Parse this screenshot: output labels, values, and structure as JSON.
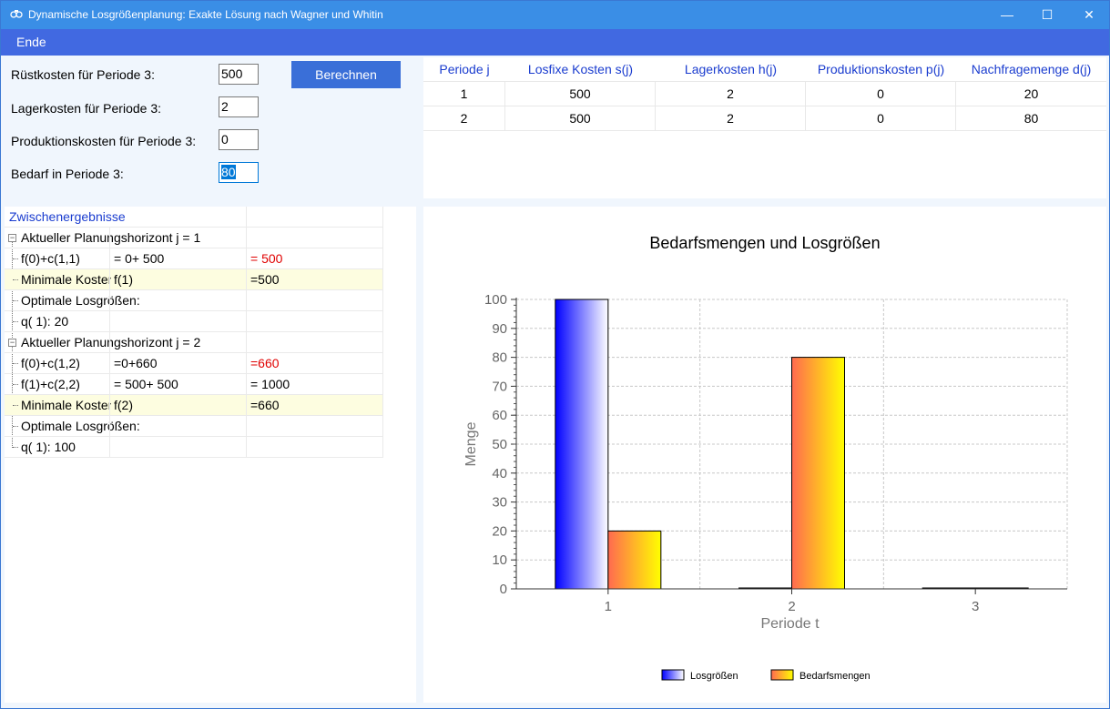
{
  "window": {
    "title": "Dynamische Losgrößenplanung: Exakte Lösung nach Wagner und Whitin",
    "minimize": "—",
    "maximize": "☐",
    "close": "✕"
  },
  "menu": {
    "ende": "Ende"
  },
  "form": {
    "ruestkosten_label": "Rüstkosten für Periode 3:",
    "ruestkosten_value": "500",
    "lagerkosten_label": "Lagerkosten für Periode 3:",
    "lagerkosten_value": "2",
    "produktionskosten_label": "Produktionskosten für Periode 3:",
    "produktionskosten_value": "0",
    "bedarf_label": "Bedarf in Periode 3:",
    "bedarf_value": "80",
    "berechnen_label": "Berechnen"
  },
  "grid": {
    "headers": [
      "Periode j",
      "Losfixe Kosten s(j)",
      "Lagerkosten h(j)",
      "Produktionskosten p(j)",
      "Nachfragemenge d(j)"
    ],
    "rows": [
      [
        "1",
        "500",
        "2",
        "0",
        "20"
      ],
      [
        "2",
        "500",
        "2",
        "0",
        "80"
      ]
    ]
  },
  "tree": {
    "header": "Zwischenergebnisse",
    "rows": [
      {
        "c1": "Aktueller Planungshorizont j =  1",
        "c2": "",
        "c3": ""
      },
      {
        "c1": "f(0)+c(1,1)",
        "c2": "= 0+ 500",
        "c3": "= 500"
      },
      {
        "c1": "Minimale Kosten",
        "c2": "f(1)",
        "c3": "=500"
      },
      {
        "c1": "Optimale Losgrößen:",
        "c2": "",
        "c3": ""
      },
      {
        "c1": "q( 1):  20",
        "c2": "",
        "c3": ""
      },
      {
        "c1": "Aktueller Planungshorizont j =  2",
        "c2": "",
        "c3": ""
      },
      {
        "c1": "f(0)+c(1,2)",
        "c2": "=0+660",
        "c3": "=660"
      },
      {
        "c1": "f(1)+c(2,2)",
        "c2": "= 500+ 500",
        "c3": "= 1000"
      },
      {
        "c1": "Minimale Kosten",
        "c2": "f(2)",
        "c3": "=660"
      },
      {
        "c1": "Optimale Losgrößen:",
        "c2": "",
        "c3": ""
      },
      {
        "c1": "q( 1):  100",
        "c2": "",
        "c3": ""
      }
    ]
  },
  "chart_data": {
    "type": "bar",
    "title": "Bedarfsmengen und Losgrößen",
    "xlabel": "Periode t",
    "ylabel": "Menge",
    "categories": [
      "1",
      "2",
      "3"
    ],
    "ylim": [
      0,
      100
    ],
    "yticks": [
      "0",
      "10",
      "20",
      "30",
      "40",
      "50",
      "60",
      "70",
      "80",
      "90",
      "100"
    ],
    "grid": true,
    "legend_position": "bottom",
    "series": [
      {
        "name": "Losgrößen",
        "values": [
          100,
          0,
          0
        ],
        "colors": [
          "#0000ff",
          "#ffffff"
        ]
      },
      {
        "name": "Bedarfsmengen",
        "values": [
          20,
          80,
          0
        ],
        "colors": [
          "#ff6a50",
          "#ffff00"
        ]
      }
    ]
  },
  "colors": {
    "titlebar": "#3a8ee6",
    "menubar": "#4169e1",
    "button": "#3a6fd8",
    "header_text": "#1a3ccf",
    "red_value": "#e00000",
    "highlight_row": "#fdfde0"
  }
}
